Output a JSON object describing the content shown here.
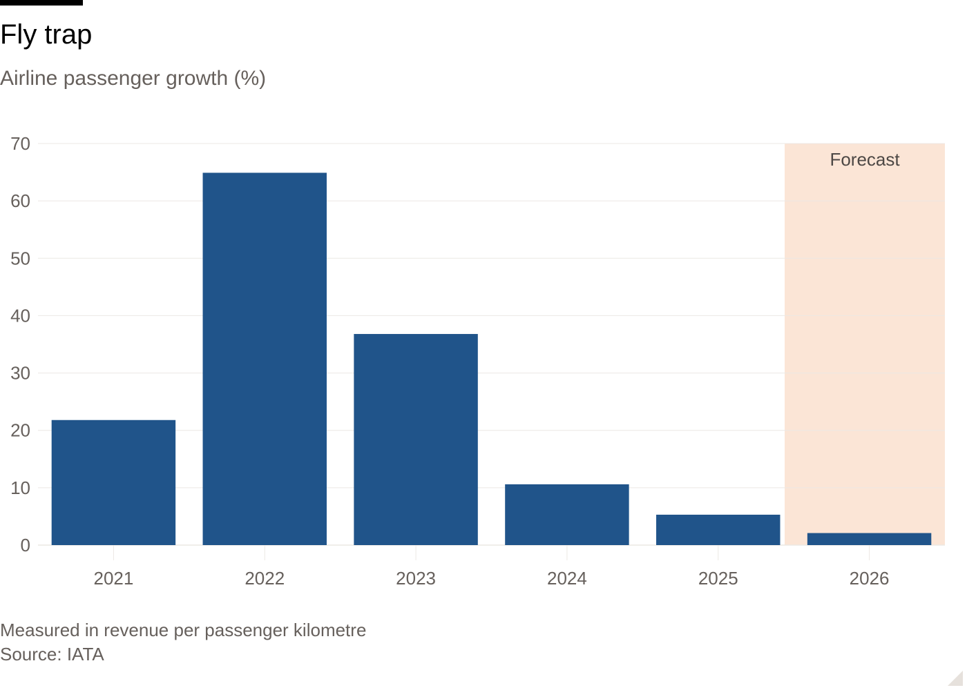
{
  "header": {
    "title": "Fly trap",
    "subtitle": "Airline passenger growth (%)"
  },
  "footer": {
    "note": "Measured in revenue per passenger kilometre",
    "source": "Source: IATA"
  },
  "chart_data": {
    "type": "bar",
    "title": "Fly trap",
    "subtitle": "Airline passenger growth (%)",
    "categories": [
      "2021",
      "2022",
      "2023",
      "2024",
      "2025",
      "2026"
    ],
    "values": [
      21.8,
      64.9,
      36.8,
      10.6,
      5.3,
      2.1
    ],
    "ylim": [
      0,
      70
    ],
    "yticks": [
      0,
      10,
      20,
      30,
      40,
      50,
      60,
      70
    ],
    "grid": true,
    "forecast": {
      "label": "Forecast",
      "categories": [
        "2026"
      ]
    },
    "colors": {
      "bar": "#20548a",
      "forecast_shade": "#fbe5d6",
      "grid": "#ece8e4",
      "axis_text": "#66605c"
    }
  }
}
